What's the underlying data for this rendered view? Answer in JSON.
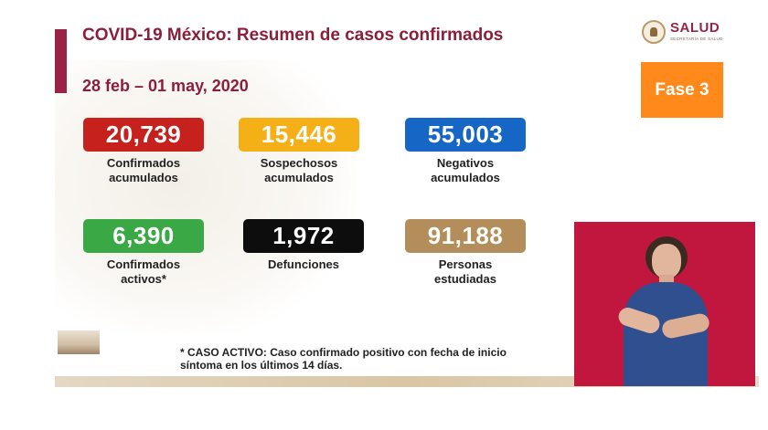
{
  "header": {
    "title": "COVID-19 México: Resumen de casos confirmados",
    "date_range": "28 feb – 01 may, 2020"
  },
  "logo": {
    "name": "SALUD",
    "subtitle": "SECRETARÍA DE SALUD",
    "icon": "eagle-seal-icon"
  },
  "phase": {
    "label": "Fase 3",
    "color": "#ff8a1b"
  },
  "metrics": [
    {
      "value": "20,739",
      "label_line1": "Confirmados",
      "label_line2": "acumulados",
      "color": "#c6211c"
    },
    {
      "value": "15,446",
      "label_line1": "Sospechosos",
      "label_line2": "acumulados",
      "color": "#f5b018"
    },
    {
      "value": "55,003",
      "label_line1": "Negativos",
      "label_line2": "acumulados",
      "color": "#1666c6"
    },
    {
      "value": "6,390",
      "label_line1": "Confirmados",
      "label_line2": "activos*",
      "color": "#3aa844"
    },
    {
      "value": "1,972",
      "label_line1": "Defunciones",
      "label_line2": "",
      "color": "#0d0d0d"
    },
    {
      "value": "91,188",
      "label_line1": "Personas",
      "label_line2": "estudiadas",
      "color": "#b48e5a"
    }
  ],
  "footnote": {
    "line1": "* CASO ACTIVO: Caso confirmado positivo con fecha de inicio",
    "line2": "síntoma en los últimos 14 días."
  },
  "colors": {
    "accent": "#9b2247",
    "title_text": "#8a1f3c",
    "interpreter_bg": "#c1173e"
  }
}
